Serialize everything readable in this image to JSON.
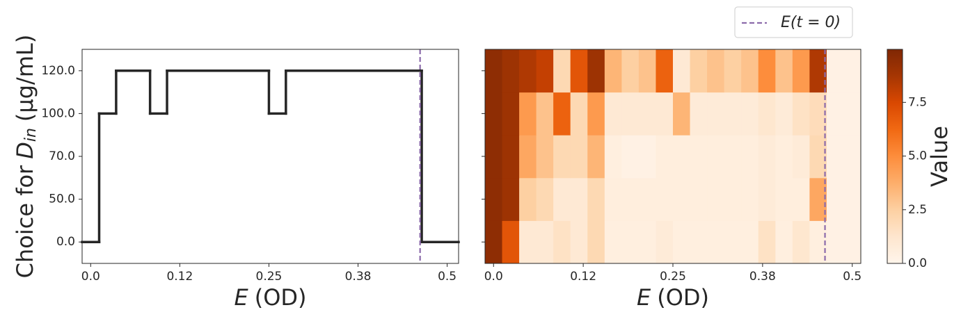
{
  "chart_data": [
    {
      "type": "line",
      "step": "mid",
      "x": [
        0,
        0.0238,
        0.0476,
        0.0714,
        0.0952,
        0.119,
        0.1429,
        0.1667,
        0.1905,
        0.2143,
        0.2381,
        0.2619,
        0.2857,
        0.3095,
        0.3333,
        0.3571,
        0.381,
        0.4048,
        0.4286,
        0.4524,
        0.4762,
        0.5
      ],
      "series": [
        {
          "color": "#262626",
          "values": [
            0,
            3,
            4,
            4,
            3,
            4,
            4,
            4,
            4,
            4,
            4,
            3,
            4,
            4,
            4,
            4,
            4,
            4,
            4,
            4,
            0,
            0
          ]
        }
      ],
      "xlim": [
        -0.012,
        0.516
      ],
      "xticks": [
        {
          "value": 0,
          "label": "0.0"
        },
        {
          "value": 0.125,
          "label": "0.12"
        },
        {
          "value": 0.25,
          "label": "0.25"
        },
        {
          "value": 0.375,
          "label": "0.38"
        },
        {
          "value": 0.5,
          "label": "0.5"
        }
      ],
      "ylim": [
        -0.5,
        4.5
      ],
      "yticks": [
        {
          "value": 0,
          "label": "0.0"
        },
        {
          "value": 1,
          "label": "50.0"
        },
        {
          "value": 2,
          "label": "70.0"
        },
        {
          "value": 3,
          "label": "100.0"
        },
        {
          "value": 4,
          "label": "120.0"
        }
      ],
      "xlabel": [
        "E",
        "(OD)"
      ],
      "ylabel": [
        "Choice for",
        "D",
        "in",
        "(μg/mL)"
      ],
      "vline": {
        "x": 0.462,
        "color": "#8c6bab"
      }
    },
    {
      "type": "heatmap",
      "sharey": true,
      "colormap": "Oranges",
      "x": [
        0,
        0.0238,
        0.0476,
        0.0714,
        0.0952,
        0.119,
        0.1429,
        0.1667,
        0.1905,
        0.2143,
        0.2381,
        0.2619,
        0.2857,
        0.3095,
        0.3333,
        0.3571,
        0.381,
        0.4048,
        0.4286,
        0.4524,
        0.4762,
        0.5
      ],
      "values": [
        [
          9.5,
          7,
          1,
          1,
          1.5,
          1,
          2,
          0.5,
          0.5,
          0.5,
          0.8,
          0.5,
          0.5,
          0.5,
          0.5,
          0.5,
          1.5,
          0.5,
          1.2,
          0.5,
          0.3,
          0.3
        ],
        [
          9.5,
          9,
          2.5,
          2,
          1,
          1,
          2,
          0.6,
          0.6,
          0.6,
          0.6,
          0.6,
          0.6,
          0.6,
          0.6,
          0.6,
          0.8,
          0.6,
          0.6,
          4,
          0.3,
          0.3
        ],
        [
          9.5,
          9,
          4,
          3,
          2,
          2,
          3.5,
          0.5,
          0.3,
          0.3,
          0.6,
          0.6,
          0.6,
          0.6,
          0.6,
          0.6,
          0.8,
          0.6,
          0.8,
          2,
          0.3,
          0.3
        ],
        [
          9.5,
          9,
          4.5,
          3,
          6.5,
          2,
          4.5,
          1,
          1,
          1,
          1,
          3.5,
          0.8,
          0.8,
          0.8,
          0.8,
          1.2,
          0.8,
          1.5,
          1.8,
          0.3,
          0.3
        ],
        [
          9.5,
          9,
          8.5,
          8,
          2,
          7,
          9,
          3.5,
          2.5,
          3,
          6.5,
          1,
          2.5,
          3,
          2.5,
          3,
          5,
          3,
          4.5,
          8.5,
          0.3,
          0.3
        ]
      ],
      "xlim": [
        -0.0119,
        0.5119
      ],
      "xticks": [
        {
          "value": 0,
          "label": "0.0"
        },
        {
          "value": 0.125,
          "label": "0.12"
        },
        {
          "value": 0.25,
          "label": "0.25"
        },
        {
          "value": 0.375,
          "label": "0.38"
        },
        {
          "value": 0.5,
          "label": "0.5"
        }
      ],
      "xlabel": [
        "E",
        "(OD)"
      ],
      "vline": {
        "x": 0.462,
        "color": "#8c6bab",
        "label": "E(t = 0)"
      },
      "colorbar": {
        "label": "Value",
        "lim": [
          0,
          9.97
        ],
        "ticks": [
          {
            "value": 0,
            "label": "0.0"
          },
          {
            "value": 2.5,
            "label": "2.5"
          },
          {
            "value": 5,
            "label": "5.0"
          },
          {
            "value": 7.5,
            "label": "7.5"
          }
        ]
      }
    }
  ]
}
